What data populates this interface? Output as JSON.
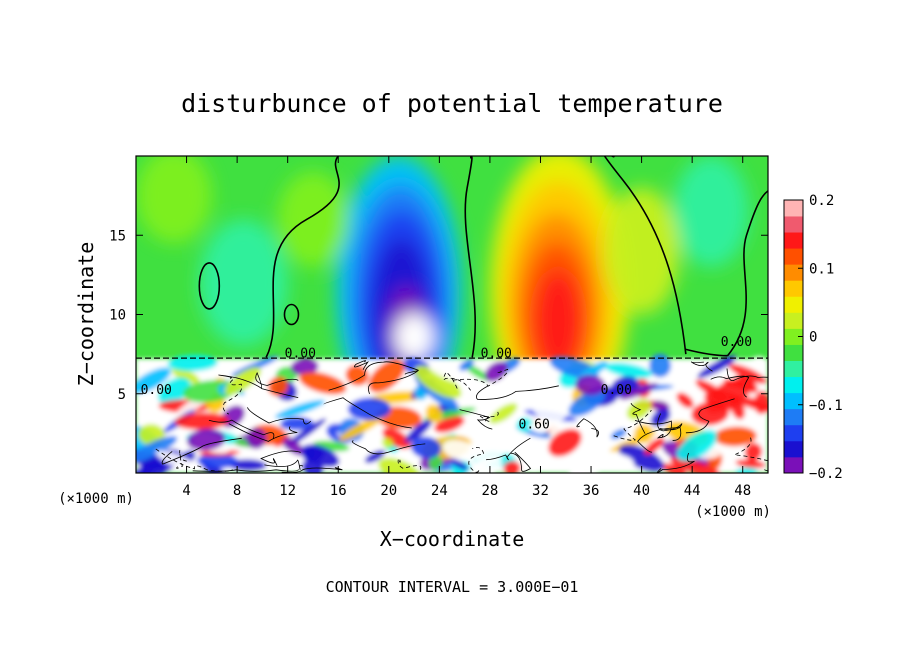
{
  "chart_data": {
    "type": "heatmap",
    "title": "disturbunce of potential temperature",
    "xlabel": "X−coordinate",
    "ylabel": "Z−coordinate",
    "x_unit_left": "(×1000 m)",
    "x_unit_right": "(×1000 m)",
    "xlim": [
      0,
      50
    ],
    "ylim": [
      0,
      20
    ],
    "xticks": [
      4,
      8,
      12,
      16,
      20,
      24,
      28,
      32,
      36,
      40,
      44,
      48
    ],
    "yticks": [
      5,
      10,
      15
    ],
    "colorbar": {
      "range": [
        -0.2,
        0.2
      ],
      "ticks": [
        {
          "value": 0.2,
          "label": "0.2"
        },
        {
          "value": 0.1,
          "label": "0.1"
        },
        {
          "value": 0,
          "label": "0"
        },
        {
          "value": -0.1,
          "label": "−0.1"
        },
        {
          "value": -0.2,
          "label": "−0.2"
        }
      ],
      "colors": [
        "#7a10b8",
        "#1a10d0",
        "#1e3ff0",
        "#1e7cf5",
        "#00bfff",
        "#00f0ee",
        "#30f0a0",
        "#40e040",
        "#80f020",
        "#c8f020",
        "#f0f000",
        "#ffc800",
        "#ff8c00",
        "#ff5000",
        "#ff1818",
        "#f05a6e",
        "#ffb4b4"
      ]
    },
    "contour_labels": [
      {
        "text": "0.00",
        "x": 13,
        "y": 7.3
      },
      {
        "text": "0.00",
        "x": 28.5,
        "y": 7.3
      },
      {
        "text": "0.00",
        "x": 47.5,
        "y": 8.0
      },
      {
        "text": "0.60",
        "x": 31.5,
        "y": 2.8
      },
      {
        "text": "0.00",
        "x": 1.6,
        "y": 5.0
      },
      {
        "text": "0.00",
        "x": 38.0,
        "y": 5.0
      }
    ],
    "contour_interval_text": "CONTOUR INTERVAL = 3.000E−01"
  }
}
